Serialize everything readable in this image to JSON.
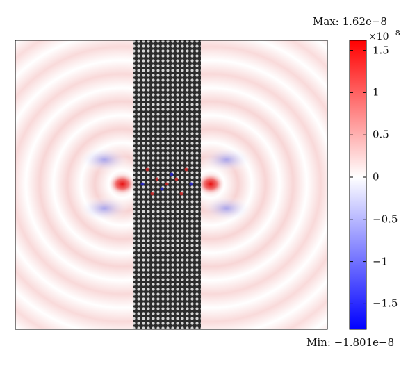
{
  "figure": {
    "max_label": "Max: 1.62e−8",
    "min_label": "Min: −1.801e−8",
    "colorbar_multiplier": "×10",
    "colorbar_exponent": "−8"
  },
  "colorbar": {
    "vmin": -1.801,
    "vmax": 1.62,
    "colors": {
      "low": "#0000ff",
      "mid": "#ffffff",
      "high": "#ff0000"
    },
    "ticks": [
      {
        "value": 1.5,
        "label": "1.5"
      },
      {
        "value": 1,
        "label": "1"
      },
      {
        "value": 0.5,
        "label": "0.5"
      },
      {
        "value": 0,
        "label": "0"
      },
      {
        "value": -0.5,
        "label": "−0.5"
      },
      {
        "value": -1,
        "label": "−1"
      },
      {
        "value": -1.5,
        "label": "−1.5"
      }
    ]
  }
}
